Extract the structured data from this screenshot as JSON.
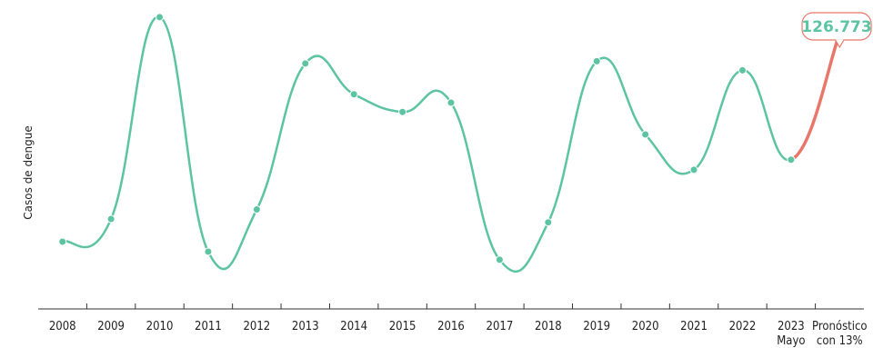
{
  "chart_data": {
    "type": "line",
    "ylabel": "Casos de dengue",
    "categories": [
      "2008",
      "2009",
      "2010",
      "2011",
      "2012",
      "2013",
      "2014",
      "2015",
      "2016",
      "2017",
      "2018",
      "2019",
      "2020",
      "2021",
      "2022",
      "2023",
      "Pronóstico"
    ],
    "category_sublabels": [
      "",
      "",
      "",
      "",
      "",
      "",
      "",
      "",
      "",
      "",
      "",
      "",
      "",
      "",
      "",
      "Mayo",
      "con 13%"
    ],
    "series": [
      {
        "values": [
          13800,
          26100,
          135600,
          8400,
          31300,
          110500,
          93800,
          84200,
          89200,
          4000,
          24300,
          111700,
          72000,
          52800,
          106800,
          58300,
          126773
        ],
        "color": "#5cc4a0",
        "forecast_color": "#e8776a"
      }
    ],
    "callout": {
      "label": "126.773",
      "color": "#5cc4a0",
      "border_color": "#e8776a"
    },
    "ylim": [
      0,
      140000
    ],
    "grid": false
  }
}
